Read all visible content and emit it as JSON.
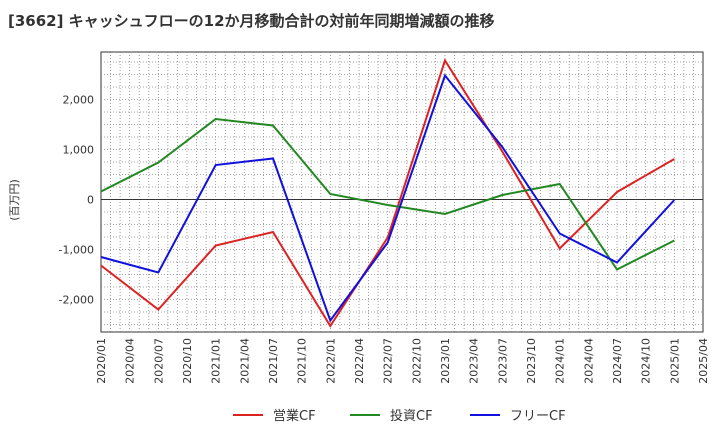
{
  "chart_data": {
    "type": "line",
    "title": "[3662]  キャッシュフローの12か月移動合計の対前年同期増減額の推移",
    "ylabel": "(百万円)",
    "xlabel": "",
    "x_ticks": [
      "2020/01",
      "2020/04",
      "2020/07",
      "2020/10",
      "2021/01",
      "2021/04",
      "2021/07",
      "2021/10",
      "2022/01",
      "2022/04",
      "2022/07",
      "2022/10",
      "2023/01",
      "2023/04",
      "2023/07",
      "2023/10",
      "2024/01",
      "2024/04",
      "2024/07",
      "2024/10",
      "2025/01",
      "2025/04"
    ],
    "y_ticks": [
      2000,
      1000,
      0,
      -1000,
      -2000
    ],
    "y_tick_labels": [
      "2,000",
      "1,000",
      "0",
      "-1,000",
      "-2,000"
    ],
    "ylim": [
      -2650,
      2950
    ],
    "grid": true,
    "legend_position": "bottom",
    "series": [
      {
        "name": "営業CF",
        "color": "#dd2222",
        "x": [
          "2020/01",
          "2020/07",
          "2021/01",
          "2021/07",
          "2022/01",
          "2022/07",
          "2023/01",
          "2023/07",
          "2024/01",
          "2024/07",
          "2025/01"
        ],
        "values": [
          -1320,
          -2200,
          -920,
          -650,
          -2530,
          -760,
          2780,
          960,
          -980,
          150,
          810
        ]
      },
      {
        "name": "投資CF",
        "color": "#228822",
        "x": [
          "2020/01",
          "2020/07",
          "2021/01",
          "2021/07",
          "2022/01",
          "2022/07",
          "2023/01",
          "2023/07",
          "2024/01",
          "2024/07",
          "2025/01"
        ],
        "values": [
          160,
          740,
          1610,
          1480,
          110,
          -110,
          -290,
          90,
          310,
          -1400,
          -820
        ]
      },
      {
        "name": "フリーCF",
        "color": "#1111dd",
        "x": [
          "2020/01",
          "2020/07",
          "2021/01",
          "2021/07",
          "2022/01",
          "2022/07",
          "2023/01",
          "2023/07",
          "2024/01",
          "2024/07",
          "2025/01"
        ],
        "values": [
          -1150,
          -1460,
          690,
          820,
          -2420,
          -860,
          2480,
          1050,
          -680,
          -1260,
          -10
        ]
      }
    ]
  }
}
